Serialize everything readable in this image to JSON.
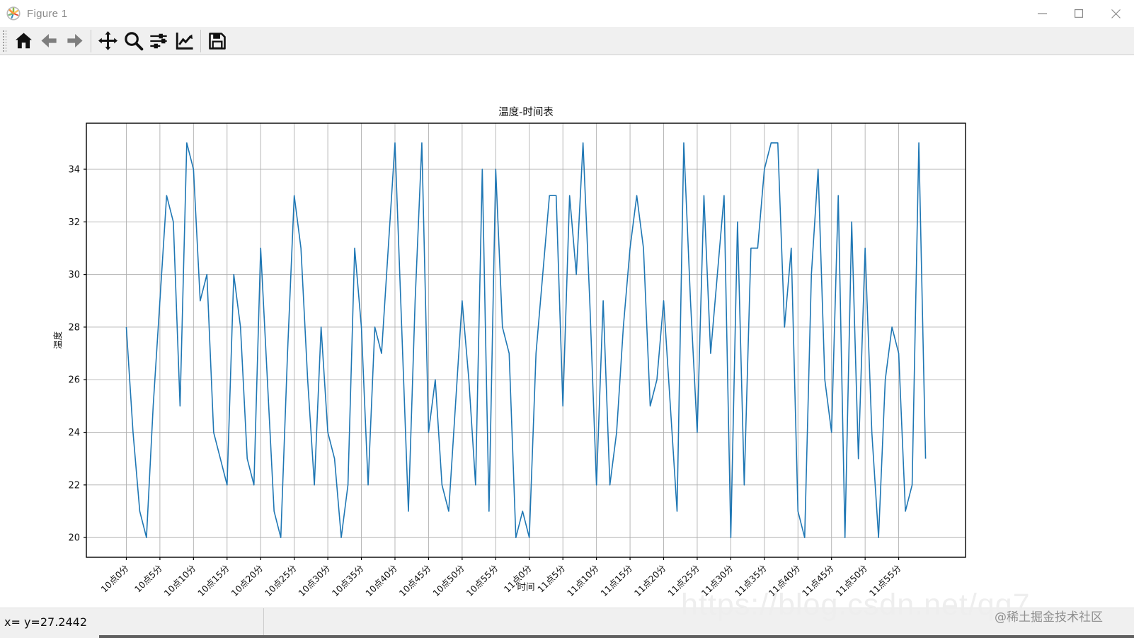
{
  "window": {
    "title": "Figure 1",
    "controls": {
      "minimize": "—",
      "maximize": "",
      "close": ""
    }
  },
  "toolbar": {
    "buttons": [
      {
        "name": "home"
      },
      {
        "name": "back"
      },
      {
        "name": "forward"
      },
      {
        "name": "pan"
      },
      {
        "name": "zoom"
      },
      {
        "name": "configure-subplots"
      },
      {
        "name": "edit-parameters"
      },
      {
        "name": "save"
      }
    ]
  },
  "chart_data": {
    "type": "line",
    "title": "温度-时间表",
    "xlabel": "时间",
    "ylabel": "温度",
    "grid": true,
    "grid_color": "#b0b0b0",
    "frame_color": "#000000",
    "line_color": "#1f77b4",
    "ylim": [
      19.25,
      35.75
    ],
    "y_ticks": [
      20,
      22,
      24,
      26,
      28,
      30,
      32,
      34
    ],
    "x_tick_every": 5,
    "x_tick_labels": [
      "10点0分",
      "10点5分",
      "10点10分",
      "10点15分",
      "10点20分",
      "10点25分",
      "10点30分",
      "10点35分",
      "10点40分",
      "10点45分",
      "10点50分",
      "10点55分",
      "11点0分",
      "11点5分",
      "11点10分",
      "11点15分",
      "11点20分",
      "11点25分",
      "11点30分",
      "11点35分",
      "11点40分",
      "11点45分",
      "11点50分",
      "11点55分"
    ],
    "series": [
      {
        "name": "温度",
        "values": [
          28,
          24,
          21,
          20,
          25,
          29,
          33,
          32,
          25,
          35,
          34,
          29,
          30,
          24,
          23,
          22,
          30,
          28,
          23,
          22,
          31,
          26,
          21,
          20,
          27,
          33,
          31,
          26,
          22,
          28,
          24,
          23,
          20,
          22,
          31,
          28,
          22,
          28,
          27,
          31,
          35,
          28,
          21,
          29,
          35,
          24,
          26,
          22,
          21,
          25,
          29,
          26,
          22,
          34,
          21,
          34,
          28,
          27,
          20,
          21,
          20,
          27,
          30,
          33,
          33,
          25,
          33,
          30,
          35,
          29,
          22,
          29,
          22,
          24,
          28,
          31,
          33,
          31,
          25,
          26,
          29,
          25,
          21,
          35,
          29,
          24,
          33,
          27,
          30,
          33,
          20,
          32,
          22,
          31,
          31,
          34,
          35,
          35,
          28,
          31,
          21,
          20,
          30,
          34,
          26,
          24,
          33,
          20,
          32,
          23,
          31,
          24,
          20,
          26,
          28,
          27,
          21,
          22,
          35,
          23
        ]
      }
    ]
  },
  "statusbar": {
    "coords_text": "x= y=27.2442"
  },
  "watermarks": {
    "url_text": "https://blog.csdn.net/qq7",
    "community_text": "@稀土掘金技术社区"
  }
}
